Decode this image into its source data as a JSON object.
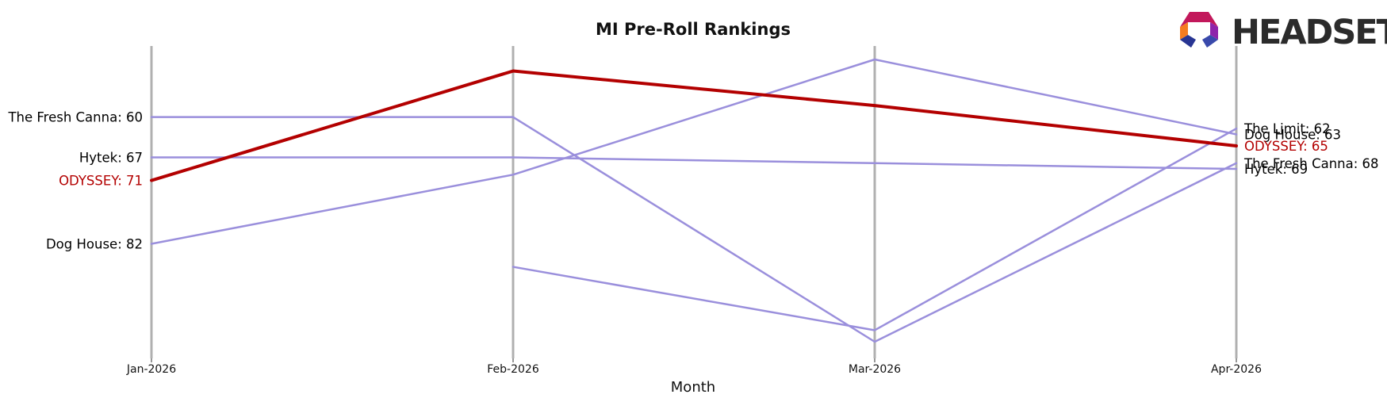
{
  "logo": {
    "text": "HEADSET"
  },
  "chart_data": {
    "type": "line",
    "title": "MI Pre-Roll Rankings",
    "xlabel": "Month",
    "ylabel": "",
    "categories": [
      "Jan-2026",
      "Feb-2026",
      "Mar-2026",
      "Apr-2026"
    ],
    "y_inverted": true,
    "grid": "vertical lines at each month",
    "legend": "none (labels at line ends)",
    "highlight_color": "#b30000",
    "other_color": "#9a8fdc",
    "series": [
      {
        "name": "The Fresh Canna",
        "values": [
          60,
          60,
          99,
          68
        ],
        "highlight": false,
        "left_label": "The Fresh Canna: 60",
        "right_label": "The Fresh Canna: 68"
      },
      {
        "name": "Hytek",
        "values": [
          67,
          67,
          68,
          69
        ],
        "highlight": false,
        "left_label": "Hytek: 67",
        "right_label": "Hytek: 69"
      },
      {
        "name": "Dog House",
        "values": [
          82,
          70,
          50,
          63
        ],
        "highlight": false,
        "left_label": "Dog House: 82",
        "right_label": "Dog House: 63"
      },
      {
        "name": "The Limit",
        "values": [
          null,
          86,
          97,
          62
        ],
        "highlight": false,
        "left_label": "",
        "right_label": "The Limit: 62"
      },
      {
        "name": "ODYSSEY",
        "values": [
          71,
          52,
          58,
          65
        ],
        "highlight": true,
        "left_label": "ODYSSEY: 71",
        "right_label": "ODYSSEY: 65"
      }
    ]
  }
}
